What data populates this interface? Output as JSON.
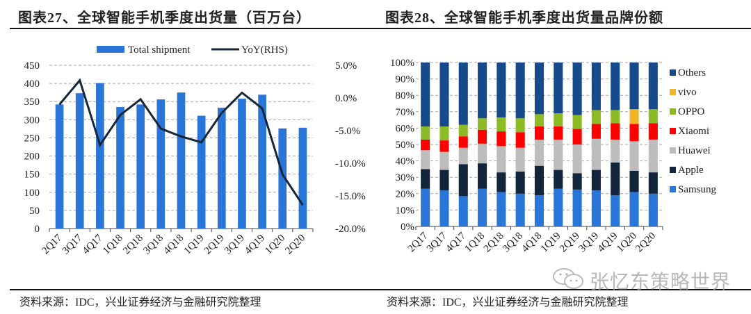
{
  "left": {
    "title": "图表27、全球智能手机季度出货量（百万台）",
    "source": "资料来源：IDC，兴业证券经济与金融研究院整理"
  },
  "right": {
    "title": "图表28、全球智能手机季度出货量品牌份额",
    "source": "资料来源：IDC，兴业证券经济与金融研究院整理"
  },
  "watermark": "张忆东策略世界",
  "colors": {
    "bar": "#2a75d8",
    "line": "#142638",
    "grid": "#a6a6a6",
    "Samsung": "#2a75d8",
    "Apple": "#13253b",
    "Huawei": "#bdbdbd",
    "Xiaomi": "#ff0000",
    "OPPO": "#8cbb26",
    "vivo": "#f0b429",
    "Others": "#174a8b"
  },
  "chart_data": [
    {
      "type": "bar",
      "title": "全球智能手机季度出货量（百万台）",
      "categories": [
        "2Q17",
        "3Q17",
        "4Q17",
        "1Q18",
        "2Q18",
        "3Q18",
        "4Q18",
        "1Q19",
        "2Q19",
        "3Q19",
        "4Q19",
        "1Q20",
        "2Q20"
      ],
      "series": [
        {
          "name": "Total shipment",
          "kind": "bar",
          "axis": "left",
          "values": [
            342,
            373,
            401,
            335,
            342,
            356,
            375,
            311,
            333,
            358,
            369,
            276,
            278
          ]
        },
        {
          "name": "YoY(RHS)",
          "kind": "line",
          "axis": "right",
          "values": [
            -1.0,
            2.7,
            -7.2,
            -2.6,
            -0.2,
            -4.7,
            -5.9,
            -6.8,
            -2.3,
            0.8,
            -1.6,
            -11.7,
            -16.4
          ]
        }
      ],
      "ylim": [
        0,
        450
      ],
      "yticks": [
        "0",
        "50",
        "100",
        "150",
        "200",
        "250",
        "300",
        "350",
        "400",
        "450"
      ],
      "y2lim": [
        -20,
        5
      ],
      "y2ticks": [
        "-20.0%",
        "-15.0%",
        "-10.0%",
        "-5.0%",
        "0.0%",
        "5.0%"
      ],
      "xlabel": "",
      "ylabel": "",
      "y2label": "",
      "grid": true,
      "legend": [
        "Total shipment",
        "YoY(RHS)"
      ],
      "legend_position": "top"
    },
    {
      "type": "bar",
      "stacked": true,
      "title": "全球智能手机季度出货量品牌份额",
      "categories": [
        "2Q17",
        "3Q17",
        "4Q17",
        "1Q18",
        "2Q18",
        "3Q18",
        "4Q18",
        "1Q19",
        "2Q19",
        "3Q19",
        "4Q19",
        "1Q20",
        "2Q20"
      ],
      "series": [
        {
          "name": "Samsung",
          "values": [
            23,
            22,
            18.5,
            23,
            21,
            20,
            19,
            23,
            22.5,
            22,
            19,
            21,
            20
          ]
        },
        {
          "name": "Apple",
          "values": [
            12,
            12.5,
            19.5,
            15.5,
            12,
            13.5,
            18,
            11.5,
            10,
            12.5,
            20,
            13,
            13
          ]
        },
        {
          "name": "Huawei",
          "values": [
            11.5,
            11,
            10,
            12,
            16,
            14.5,
            16,
            18.5,
            17.5,
            19,
            14,
            18,
            20
          ]
        },
        {
          "name": "Xiaomi",
          "values": [
            6.5,
            7,
            7,
            8.5,
            9,
            9.5,
            8,
            8,
            9.5,
            9,
            10,
            10.5,
            10
          ]
        },
        {
          "name": "OPPO",
          "values": [
            8,
            8.5,
            7,
            7,
            8.5,
            8.5,
            7.5,
            8,
            8.5,
            8.5,
            8,
            0,
            8.5
          ]
        },
        {
          "name": "vivo",
          "values": [
            0,
            0,
            0,
            0,
            0,
            0,
            0,
            0,
            0,
            0,
            0,
            9,
            0
          ]
        },
        {
          "name": "Others",
          "values": [
            39,
            39,
            38,
            34,
            33.5,
            34,
            31.5,
            31,
            32,
            29,
            29,
            28.5,
            28.5
          ]
        }
      ],
      "ylim": [
        0,
        100
      ],
      "yticks": [
        "0%",
        "10%",
        "20%",
        "30%",
        "40%",
        "50%",
        "60%",
        "70%",
        "80%",
        "90%",
        "100%"
      ],
      "xlabel": "",
      "ylabel": "",
      "grid": true,
      "legend": [
        "Others",
        "vivo",
        "OPPO",
        "Xiaomi",
        "Huawei",
        "Apple",
        "Samsung"
      ],
      "legend_position": "right"
    }
  ]
}
